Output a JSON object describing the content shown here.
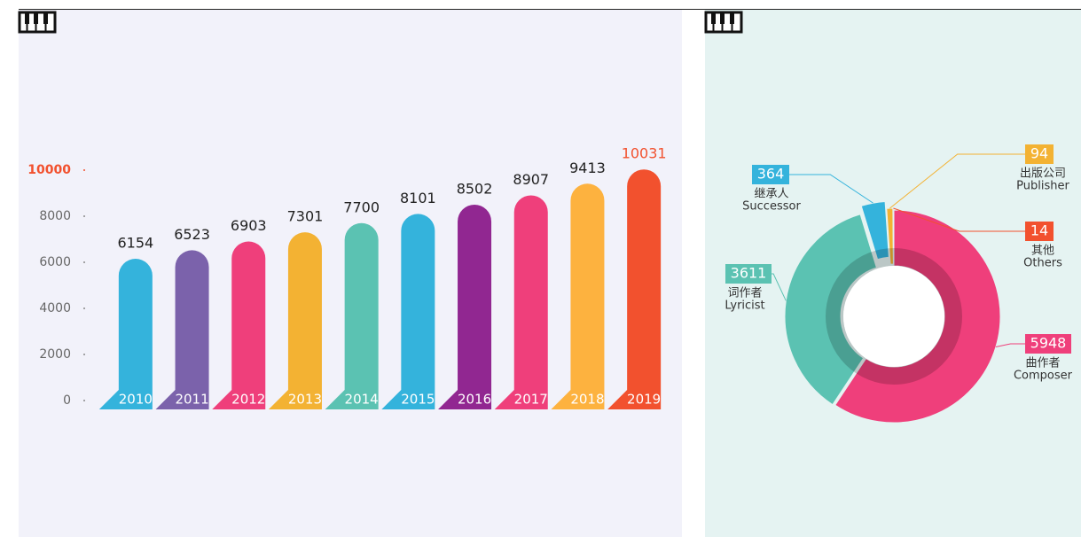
{
  "chart_data": [
    {
      "type": "bar",
      "categories": [
        "2010",
        "2011",
        "2012",
        "2013",
        "2014",
        "2015",
        "2016",
        "2017",
        "2018",
        "2019"
      ],
      "values": [
        6154,
        6523,
        6903,
        7301,
        7700,
        8101,
        8502,
        8907,
        9413,
        10031
      ],
      "colors": [
        "#34b3dc",
        "#7b62ab",
        "#ef3f7b",
        "#f3b233",
        "#5bc2b2",
        "#34b3dc",
        "#912791",
        "#ef3f7b",
        "#fdb23f",
        "#f2512e"
      ],
      "ylim": [
        0,
        10000
      ],
      "yticks": [
        0,
        2000,
        4000,
        6000,
        8000,
        10000
      ],
      "grid": false
    },
    {
      "type": "pie",
      "categories": [
        "曲作者",
        "词作者",
        "继承人",
        "出版公司",
        "其他"
      ],
      "categories_en": [
        "Composer",
        "Lyricist",
        "Successor",
        "Publisher",
        "Others"
      ],
      "values": [
        5948,
        3611,
        364,
        94,
        14
      ],
      "colors": [
        "#ef3f7b",
        "#5bc2b2",
        "#34b3dc",
        "#f3b233",
        "#f2512e"
      ]
    }
  ]
}
